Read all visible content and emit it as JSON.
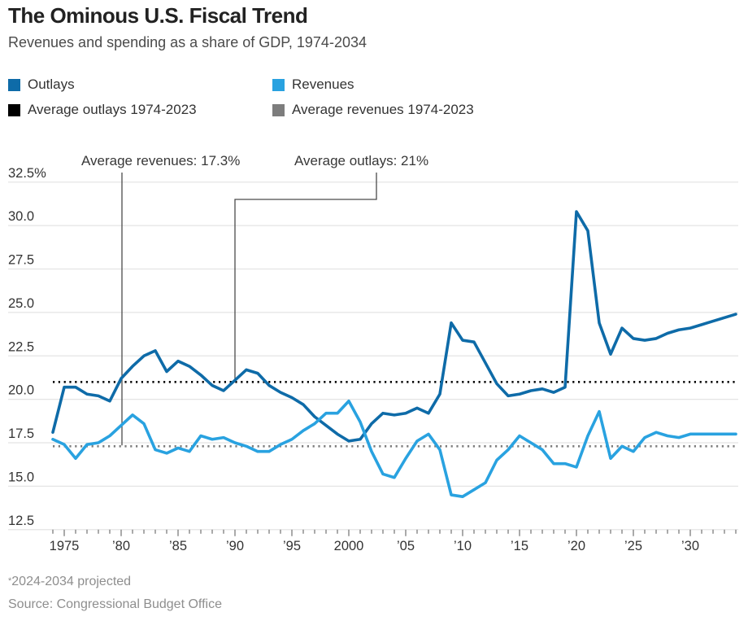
{
  "header": {
    "title": "The Ominous U.S. Fiscal Trend",
    "subtitle": "Revenues and spending as a share of GDP, 1974-2034"
  },
  "legend": {
    "items": [
      {
        "label": "Outlays",
        "color": "#0e6ba8"
      },
      {
        "label": "Revenues",
        "color": "#29a2e0"
      },
      {
        "label": "Average outlays 1974-2023",
        "color": "#000000"
      },
      {
        "label": "Average revenues 1974-2023",
        "color": "#7d7d7d"
      }
    ]
  },
  "annotations": [
    {
      "text": "Average revenues: 17.3%",
      "target_value": 17.3,
      "target_year": 1980
    },
    {
      "text": "Average outlays: 21%",
      "target_value": 21,
      "target_year": 1990
    }
  ],
  "chart_data": {
    "type": "line",
    "title": "The Ominous U.S. Fiscal Trend",
    "subtitle": "Revenues and spending as a share of GDP, 1974-2034",
    "unit": "percent of GDP",
    "ylim": [
      12.5,
      32.5
    ],
    "grid": "horizontal",
    "legend_position": "top-left",
    "ytick_values": [
      32.5,
      30.0,
      27.5,
      25.0,
      22.5,
      20.0,
      17.5,
      15.0,
      12.5
    ],
    "ytick_labels": [
      "32.5%",
      "30.0",
      "27.5",
      "25.0",
      "22.5",
      "20.0",
      "17.5",
      "15.0",
      "12.5"
    ],
    "xticks": [
      {
        "value": 1975,
        "label": "1975"
      },
      {
        "value": 1980,
        "label": "’80"
      },
      {
        "value": 1985,
        "label": "’85"
      },
      {
        "value": 1990,
        "label": "’90"
      },
      {
        "value": 1995,
        "label": "’95"
      },
      {
        "value": 2000,
        "label": "2000"
      },
      {
        "value": 2005,
        "label": "’05"
      },
      {
        "value": 2010,
        "label": "’10"
      },
      {
        "value": 2015,
        "label": "’15"
      },
      {
        "value": 2020,
        "label": "’20"
      },
      {
        "value": 2025,
        "label": "’25"
      },
      {
        "value": 2030,
        "label": "’30"
      }
    ],
    "years": [
      1974,
      1975,
      1976,
      1977,
      1978,
      1979,
      1980,
      1981,
      1982,
      1983,
      1984,
      1985,
      1986,
      1987,
      1988,
      1989,
      1990,
      1991,
      1992,
      1993,
      1994,
      1995,
      1996,
      1997,
      1998,
      1999,
      2000,
      2001,
      2002,
      2003,
      2004,
      2005,
      2006,
      2007,
      2008,
      2009,
      2010,
      2011,
      2012,
      2013,
      2014,
      2015,
      2016,
      2017,
      2018,
      2019,
      2020,
      2021,
      2022,
      2023,
      2024,
      2025,
      2026,
      2027,
      2028,
      2029,
      2030,
      2031,
      2032,
      2033,
      2034
    ],
    "series": [
      {
        "name": "Outlays",
        "color": "#0e6ba8",
        "values": [
          18.1,
          20.7,
          20.7,
          20.3,
          20.2,
          19.9,
          21.2,
          21.9,
          22.5,
          22.8,
          21.6,
          22.2,
          21.9,
          21.4,
          20.8,
          20.5,
          21.1,
          21.7,
          21.5,
          20.8,
          20.4,
          20.1,
          19.7,
          19.0,
          18.5,
          18.0,
          17.6,
          17.7,
          18.6,
          19.2,
          19.1,
          19.2,
          19.5,
          19.2,
          20.3,
          24.4,
          23.4,
          23.3,
          22.1,
          20.9,
          20.2,
          20.3,
          20.5,
          20.6,
          20.4,
          20.7,
          30.8,
          29.7,
          24.4,
          22.6,
          24.1,
          23.5,
          23.4,
          23.5,
          23.8,
          24.0,
          24.1,
          24.3,
          24.5,
          24.7,
          24.9
        ]
      },
      {
        "name": "Revenues",
        "color": "#29a2e0",
        "values": [
          17.7,
          17.4,
          16.6,
          17.4,
          17.5,
          17.9,
          18.5,
          19.1,
          18.6,
          17.1,
          16.9,
          17.2,
          17.0,
          17.9,
          17.7,
          17.8,
          17.5,
          17.3,
          17.0,
          17.0,
          17.4,
          17.7,
          18.2,
          18.6,
          19.2,
          19.2,
          19.9,
          18.7,
          17.0,
          15.7,
          15.5,
          16.6,
          17.6,
          18.0,
          17.1,
          14.5,
          14.4,
          14.8,
          15.2,
          16.5,
          17.1,
          17.9,
          17.5,
          17.1,
          16.3,
          16.3,
          16.1,
          17.9,
          19.3,
          16.6,
          17.3,
          17.0,
          17.8,
          18.1,
          17.9,
          17.8,
          18.0,
          18.0,
          18.0,
          18.0,
          18.0
        ]
      }
    ],
    "reference_lines": [
      {
        "label": "Average outlays 1974-2023",
        "value": 21.0,
        "color": "#000000",
        "style": "dotted"
      },
      {
        "label": "Average revenues 1974-2023",
        "value": 17.3,
        "color": "#7d7d7d",
        "style": "dotted"
      }
    ]
  },
  "footer": {
    "footnote_marker": "*",
    "footnote": "2024-2034 projected",
    "source": "Source: Congressional Budget Office"
  }
}
